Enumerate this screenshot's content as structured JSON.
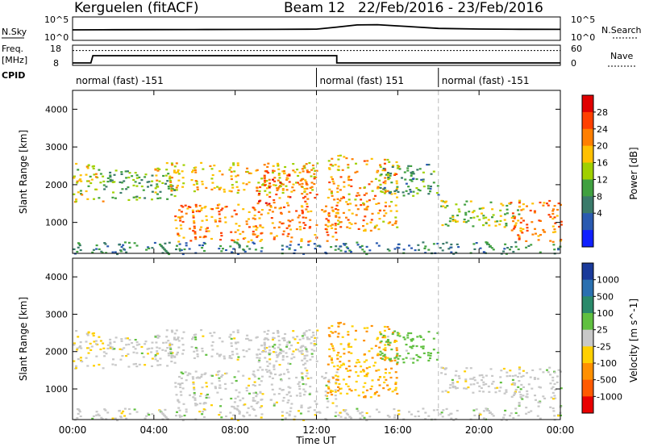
{
  "header": {
    "station": "Kerguelen (fitACF)",
    "beam": "Beam 12",
    "date_range": "22/Feb/2016 - 23/Feb/2016"
  },
  "noise_panel": {
    "left_label": "N.Sky",
    "right_label": "N.Search",
    "left_ticks": [
      "10^5",
      "10^0"
    ],
    "right_ticks": [
      "10^5",
      "10^0"
    ]
  },
  "freq_panel": {
    "left_label_1": "Freq.",
    "left_label_2": "[MHz]",
    "right_label": "Nave",
    "left_ticks": [
      "18",
      "8"
    ],
    "right_ticks": [
      "60",
      "0"
    ]
  },
  "cpid": {
    "label": "CPID",
    "segments": [
      {
        "start": 0,
        "end": 12,
        "text": "normal (fast) -151"
      },
      {
        "start": 12,
        "end": 18,
        "text": "normal (fast) 151"
      },
      {
        "start": 18,
        "end": 24,
        "text": "normal (fast) -151"
      }
    ]
  },
  "power_colorbar": {
    "label": "Power [dB]",
    "ticks": [
      "28",
      "24",
      "20",
      "16",
      "12",
      "8",
      "4"
    ],
    "colors": [
      "#e00000",
      "#ff4000",
      "#ff7f00",
      "#ffc000",
      "#a0d000",
      "#40a040",
      "#3a7a6a",
      "#2a5ab0",
      "#1020ff"
    ]
  },
  "velocity_colorbar": {
    "label": "Velocity [m s^-1]",
    "ticks": [
      "1000",
      "500",
      "100",
      "25",
      "-25",
      "-100",
      "-500",
      "-1000"
    ],
    "colors": [
      "#1a3a9a",
      "#2a70b0",
      "#2a8a6a",
      "#60c040",
      "#c8c8c8",
      "#ffd000",
      "#ff9000",
      "#ff5a00",
      "#e80000"
    ]
  },
  "chart_data": {
    "type": "heatmap",
    "x_axis": {
      "label": "Time UT",
      "range": [
        "00:00",
        "00:00"
      ],
      "ticks": [
        "00:00",
        "04:00",
        "08:00",
        "12:00",
        "16:00",
        "20:00",
        "00:00"
      ]
    },
    "y_axis": {
      "label": "Slant Range [km]",
      "range": [
        180,
        4500
      ],
      "ticks": [
        1000,
        2000,
        3000,
        4000
      ]
    },
    "panels": [
      "Power [dB]",
      "Velocity [m s^-1]"
    ],
    "noise": {
      "sky": [
        [
          0,
          200
        ],
        [
          2,
          220
        ],
        [
          4,
          230
        ],
        [
          6,
          240
        ],
        [
          8,
          250
        ],
        [
          10,
          260
        ],
        [
          12,
          300
        ],
        [
          13,
          900
        ],
        [
          14,
          3000
        ],
        [
          15,
          3500
        ],
        [
          16,
          1800
        ],
        [
          17,
          900
        ],
        [
          18,
          450
        ],
        [
          20,
          320
        ],
        [
          22,
          280
        ],
        [
          24,
          260
        ]
      ]
    },
    "frequency_mhz": [
      [
        0,
        8
      ],
      [
        0.9,
        8
      ],
      [
        1.0,
        12.5
      ],
      [
        13.0,
        12.5
      ],
      [
        13.0,
        8
      ],
      [
        24,
        8
      ]
    ],
    "nave": [
      [
        0,
        46
      ],
      [
        24,
        46
      ]
    ],
    "echo_regions": [
      {
        "t": [
          0.0,
          1.5
        ],
        "r": [
          1500,
          2600
        ],
        "power": 18,
        "velocity": -25
      },
      {
        "t": [
          1.5,
          5.0
        ],
        "r": [
          1600,
          2400
        ],
        "power": 12,
        "velocity": 0
      },
      {
        "t": [
          4.0,
          12.0
        ],
        "r": [
          1800,
          2600
        ],
        "power": 20,
        "velocity": 0
      },
      {
        "t": [
          5.0,
          13.0
        ],
        "r": [
          500,
          1500
        ],
        "power": 24,
        "velocity": 0
      },
      {
        "t": [
          9.0,
          12.0
        ],
        "r": [
          1500,
          2400
        ],
        "power": 26,
        "velocity": 0
      },
      {
        "t": [
          12.5,
          16.0
        ],
        "r": [
          800,
          2800
        ],
        "power": 22,
        "velocity": -100
      },
      {
        "t": [
          15.0,
          18.0
        ],
        "r": [
          1700,
          2600
        ],
        "power": 10,
        "velocity": 50
      },
      {
        "t": [
          18.0,
          22.0
        ],
        "r": [
          900,
          1600
        ],
        "power": 16,
        "velocity": 0
      },
      {
        "t": [
          21.5,
          24.0
        ],
        "r": [
          500,
          1600
        ],
        "power": 24,
        "velocity": 0
      },
      {
        "t": [
          0.0,
          24.0
        ],
        "r": [
          180,
          500
        ],
        "power": 8,
        "velocity": 0
      }
    ]
  }
}
